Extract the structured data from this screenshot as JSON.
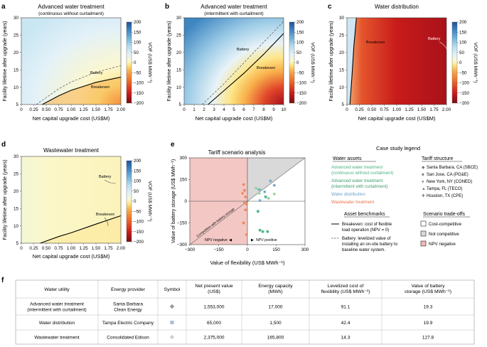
{
  "colors": {
    "vof_scale": [
      "#7a0c10",
      "#c81b1b",
      "#ee6a2a",
      "#f8b04a",
      "#fde68a",
      "#fbf7cf",
      "#e3f1f8",
      "#b7dced",
      "#73b3db",
      "#3f86c1",
      "#1f4f95"
    ],
    "asset_advanced_continuous": "#8fd19e",
    "asset_advanced_intermittent": "#52b788",
    "asset_water_distribution": "#74a9cf",
    "asset_wastewater": "#f08a5d",
    "region_cost_competitive": "#ffffff",
    "region_not_competitive": "#d9d9d9",
    "region_npv_negative": "#f2b8b5"
  },
  "panels": {
    "a": {
      "letter": "a",
      "title": "Advanced water treatment",
      "subtitle": "(continuous without curtailment)",
      "xlabel": "Net capital upgrade cost (US$M)",
      "ylabel": "Facility lifetime after upgrade (years)",
      "xticks": [
        "0",
        "0.25",
        "0.50",
        "0.75",
        "1.00",
        "1.25",
        "1.50",
        "1.75",
        "2.00"
      ],
      "yticks": [
        "5",
        "10",
        "15",
        "20",
        "25",
        "30"
      ],
      "labels": {
        "battery": "Battery",
        "breakeven": "Breakeven"
      }
    },
    "b": {
      "letter": "b",
      "title": "Advanced water treatment",
      "subtitle": "(intermittent with curtailment)",
      "xlabel": "Net capital upgrade cost (US$M)",
      "ylabel": "Facility lifetime after upgrade (years)",
      "xticks": [
        "0",
        "1",
        "2",
        "3",
        "4",
        "5",
        "6",
        "7",
        "8",
        "9",
        "10"
      ],
      "yticks": [
        "5",
        "10",
        "15",
        "20",
        "25",
        "30"
      ],
      "labels": {
        "battery": "Battery",
        "breakeven": "Breakeven"
      }
    },
    "c": {
      "letter": "c",
      "title": "Water distribution",
      "xlabel": "Net capital upgrade cost (US$M)",
      "ylabel": "Facility lifetime after upgrade (years)",
      "xticks": [
        "0",
        "0.25",
        "0.50",
        "0.75",
        "1.00",
        "1.25",
        "1.50",
        "1.75",
        "2.00"
      ],
      "yticks": [
        "5",
        "10",
        "15",
        "20",
        "25",
        "30"
      ],
      "labels": {
        "battery": "Battery",
        "breakeven": "Breakeven"
      }
    },
    "d": {
      "letter": "d",
      "title": "Wastewater treatment",
      "xlabel": "Net capital upgrade cost (US$M)",
      "ylabel": "Facility lifetime after upgrade (years)",
      "xticks": [
        "0",
        "0.25",
        "0.50",
        "0.75",
        "1.00",
        "1.25",
        "1.50",
        "1.75",
        "2.00"
      ],
      "yticks": [
        "5",
        "10",
        "15",
        "20",
        "25",
        "30"
      ],
      "labels": {
        "battery": "Battery",
        "breakeven": "Breakeven"
      }
    },
    "e": {
      "letter": "e",
      "title": "Tariff scenario analysis",
      "xlabel": "Value of flexibility (US$ MWh⁻¹)",
      "ylabel": "Value of battery storage (US$ MWh⁻¹)",
      "xticks": [
        "−300",
        "−150",
        "0",
        "150",
        "300"
      ],
      "yticks": [
        "−300",
        "−150",
        "0",
        "150",
        "300"
      ],
      "diag_label": "Competitive with battery storage",
      "npv_negative": "NPV negative",
      "npv_positive": "NPV positive"
    }
  },
  "colorbar": {
    "label": "VOF (US$ MWh⁻¹)",
    "ticks": [
      "200",
      "150",
      "100",
      "50",
      "0",
      "−50",
      "−100",
      "−150",
      "−200"
    ]
  },
  "legend": {
    "title": "Case study legend",
    "water_assets_title": "Water assets",
    "water_assets": [
      "Advanced water treatment",
      "(continuous without curtailment)",
      "Advanced water treatment",
      "(intermittent with curtailment)",
      "Water distribution",
      "Wastewater treatment"
    ],
    "tariff_title": "Tariff structure",
    "tariffs": [
      "Santa Barbara, CA (SBCE)",
      "San Jose, CA (PG&E)",
      "New York, NY (CONED)",
      "Tampa, FL (TECO)",
      "Houston, TX (CPE)"
    ],
    "benchmarks_title": "Asset benchmarks",
    "breakeven_line1": "Breakeven: cost of flexible",
    "breakeven_line2": "load operation (NPV = 0)",
    "battery_line1": "Battery: levelized value of",
    "battery_line2": "installing an on-site battery to",
    "battery_line3": "baseline water system.",
    "tradeoffs_title": "Scenario trade-offs",
    "tradeoffs": [
      "Cost-competitive",
      "Not competitive",
      "NPV negative"
    ]
  },
  "chart_data": [
    {
      "type": "heatmap",
      "panel": "a",
      "title": "Advanced water treatment (continuous without curtailment)",
      "xlabel": "Net capital upgrade cost (US$M)",
      "ylabel": "Facility lifetime after upgrade (years)",
      "xlim": [
        0,
        2.0
      ],
      "ylim": [
        5,
        30
      ],
      "zlim": [
        -200,
        200
      ],
      "breakeven": {
        "x": [
          0.42,
          0.75,
          1.0,
          1.5,
          2.0
        ],
        "y": [
          5,
          7.5,
          9.1,
          11.4,
          12.9
        ]
      },
      "battery": {
        "x": [
          0.3,
          0.75,
          1.0,
          1.5,
          2.0
        ],
        "y": [
          5,
          9.5,
          11.5,
          14.3,
          16.2
        ]
      }
    },
    {
      "type": "heatmap",
      "panel": "b",
      "title": "Advanced water treatment (intermittent with curtailment)",
      "xlabel": "Net capital upgrade cost (US$M)",
      "ylabel": "Facility lifetime after upgrade (years)",
      "xlim": [
        0,
        10
      ],
      "ylim": [
        5,
        30
      ],
      "zlim": [
        -200,
        200
      ],
      "breakeven": {
        "x": [
          2.4,
          4,
          6,
          8,
          10
        ],
        "y": [
          5,
          9,
          14,
          19.5,
          25.5
        ]
      },
      "battery": {
        "x": [
          1.8,
          4,
          6,
          8,
          10
        ],
        "y": [
          5,
          11,
          17,
          23,
          29
        ]
      }
    },
    {
      "type": "heatmap",
      "panel": "c",
      "title": "Water distribution",
      "xlabel": "Net capital upgrade cost (US$M)",
      "ylabel": "Facility lifetime after upgrade (years)",
      "xlim": [
        0,
        2.0
      ],
      "ylim": [
        5,
        30
      ],
      "zlim": [
        -200,
        200
      ],
      "breakeven": {
        "x": [
          0.06,
          0.1,
          0.14,
          0.19
        ],
        "y": [
          5,
          13,
          22,
          30
        ]
      }
    },
    {
      "type": "heatmap",
      "panel": "d",
      "title": "Wastewater treatment",
      "xlabel": "Net capital upgrade cost (US$M)",
      "ylabel": "Facility lifetime after upgrade (years)",
      "xlim": [
        0,
        2.0
      ],
      "ylim": [
        5,
        30
      ],
      "zlim": [
        -200,
        200
      ],
      "breakeven": {
        "x": [
          0.38,
          0.75,
          1.0,
          1.5,
          2.0
        ],
        "y": [
          5,
          6.9,
          8.0,
          10.5,
          12.9
        ]
      }
    },
    {
      "type": "scatter",
      "panel": "e",
      "title": "Tariff scenario analysis",
      "xlabel": "Value of flexibility (US$ MWh⁻¹)",
      "ylabel": "Value of battery storage (US$ MWh⁻¹)",
      "xlim": [
        -300,
        300
      ],
      "ylim": [
        -300,
        300
      ],
      "series": [
        {
          "name": "Advanced water treatment (continuous without curtailment)",
          "points": [
            [
              45,
              90
            ],
            [
              62,
              55
            ],
            [
              70,
              80
            ],
            [
              110,
              20
            ],
            [
              140,
              50
            ]
          ]
        },
        {
          "name": "Advanced water treatment (intermittent with curtailment)",
          "points": [
            [
              55,
              -70
            ],
            [
              95,
              30
            ],
            [
              65,
              -200
            ],
            [
              80,
              -210
            ],
            [
              105,
              -210
            ]
          ]
        },
        {
          "name": "Water distribution",
          "points": [
            [
              60,
              80
            ],
            [
              90,
              65
            ],
            [
              120,
              140
            ],
            [
              140,
              110
            ],
            [
              65,
              5
            ]
          ]
        },
        {
          "name": "Wastewater treatment",
          "points": [
            [
              -20,
              115
            ],
            [
              -15,
              75
            ],
            [
              -25,
              55
            ],
            [
              -10,
              30
            ],
            [
              -15,
              -10
            ],
            [
              -5,
              -20
            ],
            [
              -10,
              -60
            ],
            [
              -20,
              -150
            ],
            [
              -5,
              -230
            ]
          ]
        }
      ]
    }
  ],
  "table": {
    "letter": "f",
    "headers": [
      [
        "Water utility"
      ],
      [
        "Energy provider"
      ],
      [
        "Symbol"
      ],
      [
        "Net present value",
        "(US$)"
      ],
      [
        "Energy capacity",
        "(MWh)"
      ],
      [
        "Levelized cost of",
        "flexibility (US$ MWh⁻¹)"
      ],
      [
        "Value of battery",
        "storage (US$ MWh⁻¹)"
      ]
    ],
    "rows": [
      {
        "utility": [
          "Advanced water treatment",
          "(intermittent with curtailment)"
        ],
        "provider": [
          "Santa Barbara",
          "Clean Energy"
        ],
        "symbol": "diamond",
        "symbol_color": "#9a9a9a",
        "npv": "1,553,000",
        "capacity": "17,000",
        "lcof": "91.1",
        "battery": "19.3"
      },
      {
        "utility": [
          "Water distribution"
        ],
        "provider": [
          "Tampa Electric Company"
        ],
        "symbol": "square",
        "symbol_color": "#a6bddb",
        "npv": "65,000",
        "capacity": "1,500",
        "lcof": "42.4",
        "battery": "19.9"
      },
      {
        "utility": [
          "Wastewater treatment"
        ],
        "provider": [
          "Consolidated Edison"
        ],
        "symbol": "diamond",
        "symbol_color": "#d0d0d0",
        "npv": "2,375,000",
        "capacity": "165,800",
        "lcof": "14.3",
        "battery": "127.8"
      }
    ]
  }
}
